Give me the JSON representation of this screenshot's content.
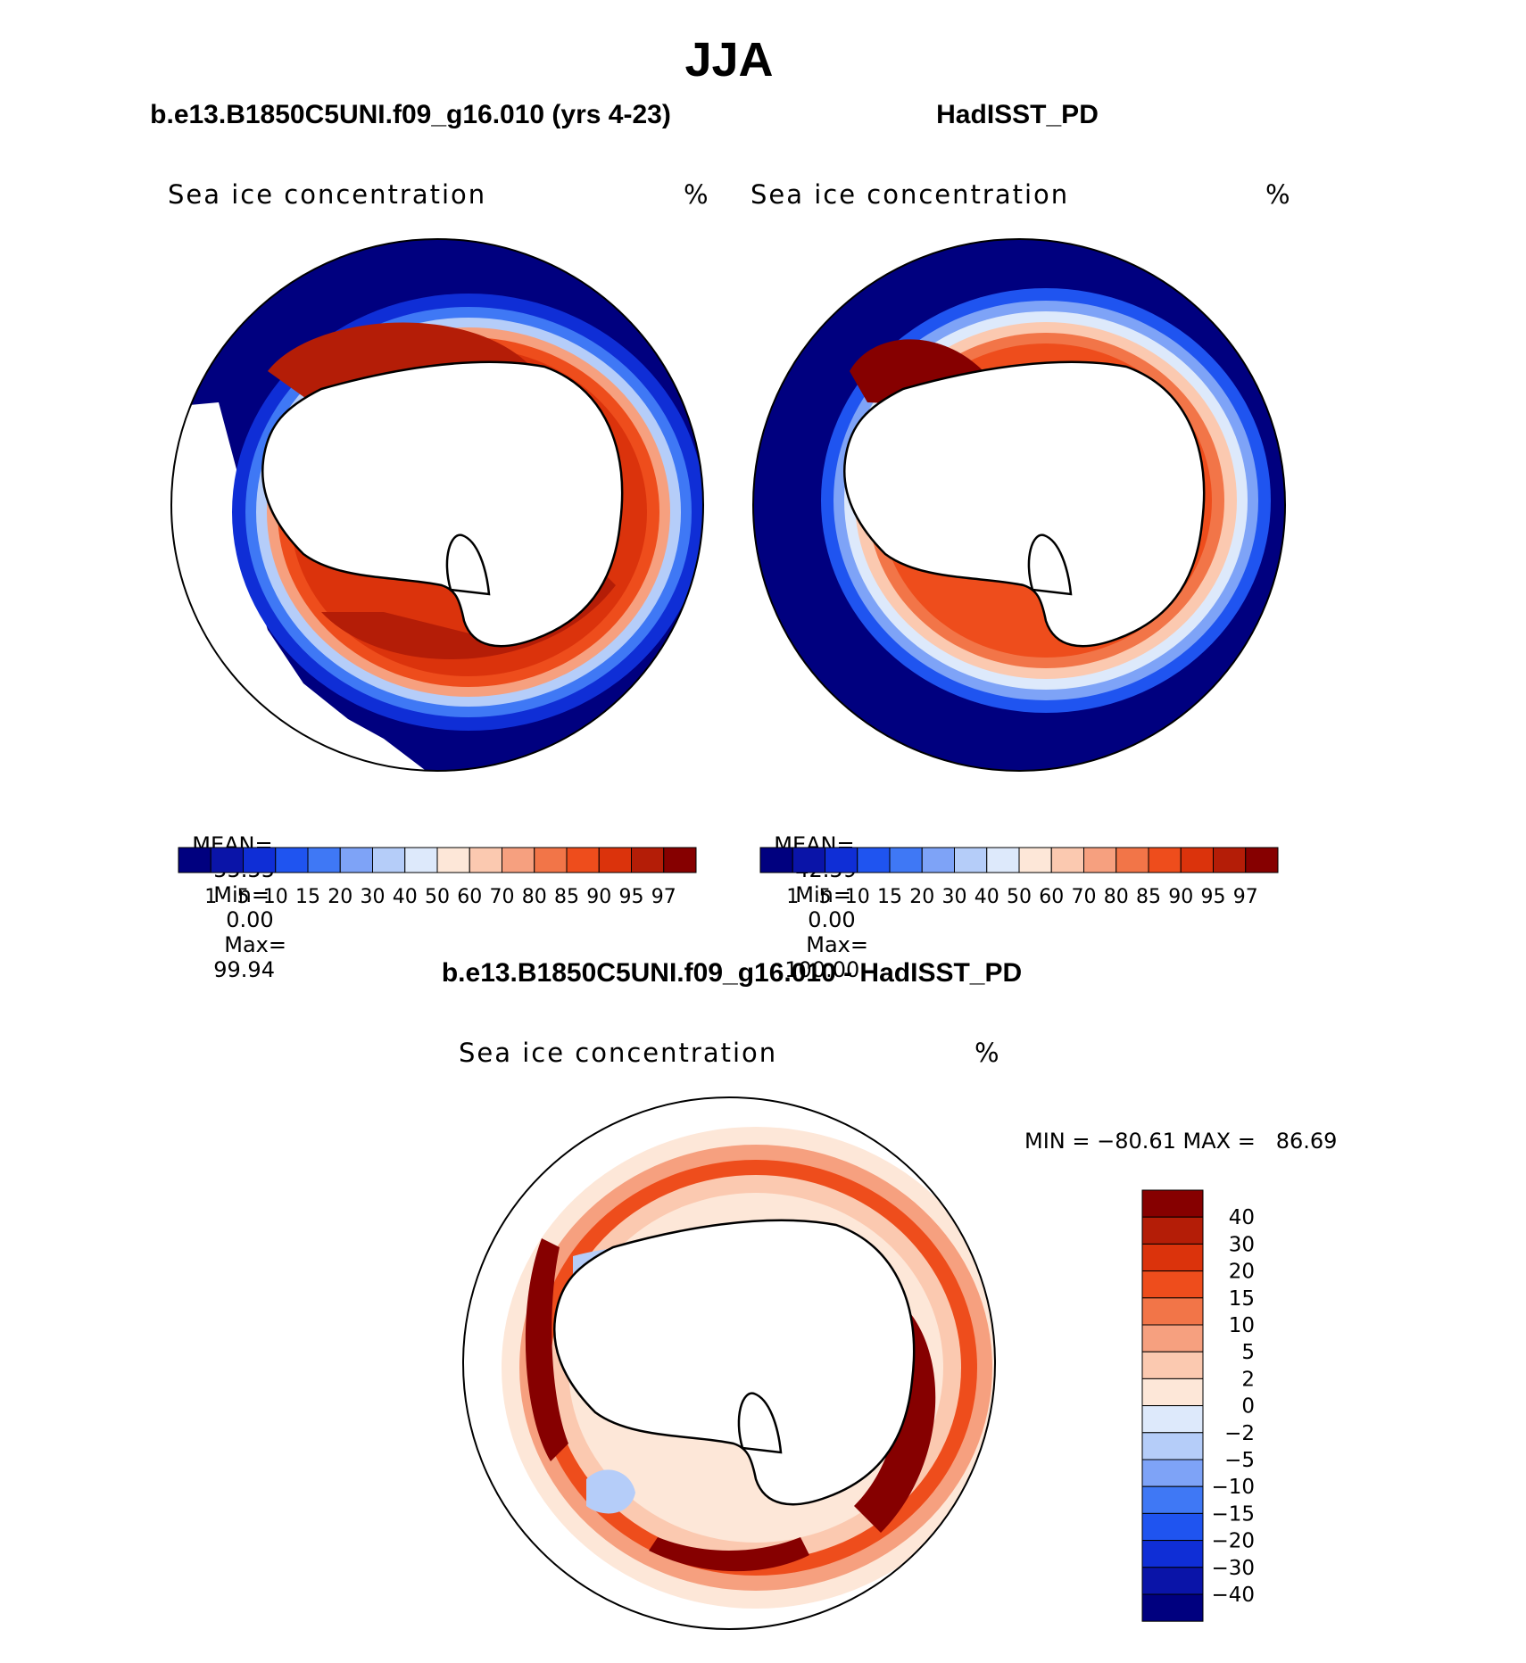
{
  "title": "JJA",
  "colors": {
    "seq": [
      "#00007f",
      "#0a14a8",
      "#0f2ed6",
      "#1f54f0",
      "#3f78f5",
      "#7ea3f7",
      "#b5cdf9",
      "#dde9fb",
      "#fde7d8",
      "#fbc9b0",
      "#f6a07f",
      "#f27548",
      "#ee4d1c",
      "#db330c",
      "#b41d07",
      "#860000"
    ],
    "div": [
      "#00007f",
      "#0a14a8",
      "#0f2ed6",
      "#1f54f0",
      "#3f78f5",
      "#7ea3f7",
      "#b5cdf9",
      "#dde9fb",
      "#fde7d8",
      "#fbc9b0",
      "#f6a07f",
      "#f27548",
      "#ee4d1c",
      "#db330c",
      "#b41d07",
      "#860000"
    ],
    "land": "#ffffff",
    "ocean_zero": "#ffffff"
  },
  "panels": {
    "model": {
      "heading": "b.e13.B1850C5UNI.f09_g16.010 (yrs 4-23)",
      "subtitle": "Sea ice concentration",
      "units": "%",
      "mean_label": "MEAN=",
      "mean": "55.55",
      "min_label": "Min=",
      "min": "0.00",
      "max_label": "Max=",
      "max": "99.94"
    },
    "obs": {
      "heading": "HadISST_PD",
      "subtitle": "Sea ice concentration",
      "units": "%",
      "mean_label": "MEAN=",
      "mean": "42.59",
      "min_label": "Min=",
      "min": "0.00",
      "max_label": "Max=",
      "max": "100.00"
    },
    "diff": {
      "heading": "b.e13.B1850C5UNI.f09_g16.010 - HadISST_PD",
      "subtitle": "Sea ice concentration",
      "units": "%",
      "minmax_text": "MIN = −80.61 MAX =   86.69"
    }
  },
  "chart_data": [
    {
      "type": "heatmap",
      "title": "b.e13.B1850C5UNI.f09_g16.010 (yrs 4-23)",
      "variable": "Sea ice concentration",
      "units": "%",
      "projection": "south polar stereographic",
      "stats": {
        "mean": 55.55,
        "min": 0.0,
        "max": 99.94
      },
      "colorbar_levels": [
        "1",
        "5",
        "10",
        "15",
        "20",
        "30",
        "40",
        "50",
        "60",
        "70",
        "80",
        "85",
        "90",
        "95",
        "97"
      ],
      "colorbar_orientation": "horizontal"
    },
    {
      "type": "heatmap",
      "title": "HadISST_PD",
      "variable": "Sea ice concentration",
      "units": "%",
      "projection": "south polar stereographic",
      "stats": {
        "mean": 42.59,
        "min": 0.0,
        "max": 100.0
      },
      "colorbar_levels": [
        "1",
        "5",
        "10",
        "15",
        "20",
        "30",
        "40",
        "50",
        "60",
        "70",
        "80",
        "85",
        "90",
        "95",
        "97"
      ],
      "colorbar_orientation": "horizontal"
    },
    {
      "type": "heatmap",
      "title": "b.e13.B1850C5UNI.f09_g16.010 - HadISST_PD",
      "variable": "Sea ice concentration",
      "units": "%",
      "projection": "south polar stereographic",
      "stats": {
        "min": -80.61,
        "max": 86.69
      },
      "colorbar_levels": [
        "40",
        "30",
        "20",
        "15",
        "10",
        "5",
        "2",
        "0",
        "−2",
        "−5",
        "−10",
        "−15",
        "−20",
        "−30",
        "−40"
      ],
      "colorbar_orientation": "vertical"
    }
  ]
}
